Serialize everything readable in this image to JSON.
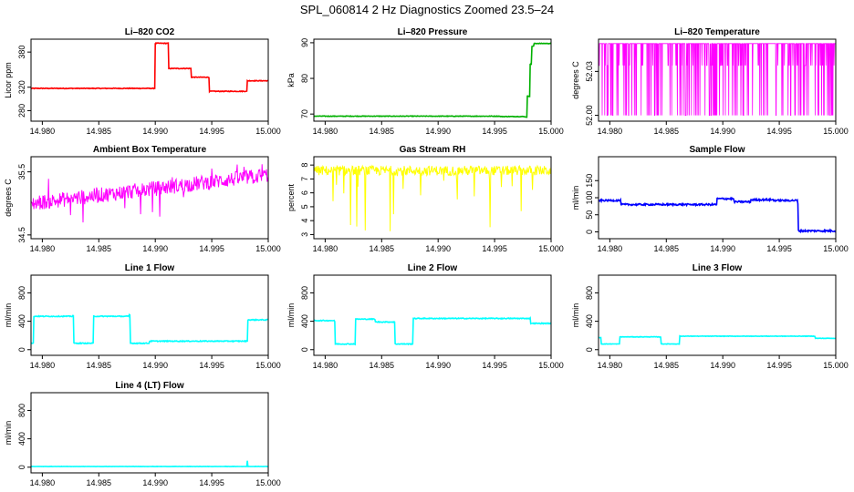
{
  "figure_title": "SPL_060814  2 Hz Diagnostics Zoomed 23.5–24",
  "x_ticks": [
    "14.980",
    "14.985",
    "14.990",
    "14.995",
    "15.000"
  ],
  "chart_data": [
    {
      "type": "line",
      "title": "Li–820 CO2",
      "ylabel": "Licor ppm",
      "xlim": [
        14.979,
        15.0
      ],
      "ylim": [
        262,
        402
      ],
      "yticks": [
        280,
        320,
        380
      ],
      "color": "#ff0000",
      "noise": 0.6,
      "series": [
        {
          "name": "CO2",
          "steps": [
            [
              14.979,
              318
            ],
            [
              14.99,
              395
            ],
            [
              14.9912,
              352
            ],
            [
              14.9932,
              337
            ],
            [
              14.9948,
              313
            ],
            [
              14.9981,
              331
            ],
            [
              15.0,
              331
            ]
          ]
        }
      ]
    },
    {
      "type": "line",
      "title": "Li–820 Pressure",
      "ylabel": "kPa",
      "xlim": [
        14.979,
        15.0
      ],
      "ylim": [
        68,
        91
      ],
      "yticks": [
        70,
        80,
        90
      ],
      "color": "#00b000",
      "noise": 0.08,
      "series": [
        {
          "name": "Pressure",
          "steps": [
            [
              14.979,
              69.4
            ],
            [
              14.9955,
              69.3
            ],
            [
              14.9977,
              69.2
            ],
            [
              14.9979,
              75
            ],
            [
              14.9981,
              84
            ],
            [
              14.9983,
              89
            ],
            [
              14.9985,
              89.8
            ],
            [
              15.0,
              89.8
            ]
          ]
        }
      ]
    },
    {
      "type": "line",
      "title": "Li–820 Temperature",
      "ylabel": "degrees C",
      "xlim": [
        14.979,
        15.0
      ],
      "ylim": [
        51.996,
        52.052
      ],
      "yticks": [
        52.0,
        52.03
      ],
      "color": "#ff00ff",
      "style": "binary",
      "series": [
        {
          "name": "Temperature",
          "levels": [
            52.0,
            52.034,
            52.049
          ]
        }
      ]
    },
    {
      "type": "line",
      "title": "Ambient Box Temperature",
      "ylabel": "degrees C",
      "xlim": [
        14.979,
        15.0
      ],
      "ylim": [
        34.44,
        35.74
      ],
      "yticks": [
        34.5,
        35.5
      ],
      "color": "#ff00ff",
      "style": "noisy",
      "series": [
        {
          "name": "Ambient",
          "start": 35.0,
          "end": 35.45,
          "amp": 0.12,
          "spike": 0.35
        }
      ]
    },
    {
      "type": "line",
      "title": "Gas Stream RH",
      "ylabel": "percent",
      "xlim": [
        14.979,
        15.0
      ],
      "ylim": [
        2.7,
        8.6
      ],
      "yticks": [
        3,
        4,
        5,
        6,
        7,
        8
      ],
      "color": "#ffff00",
      "style": "rh",
      "series": [
        {
          "name": "RH",
          "level": 7.6,
          "amp": 0.35
        }
      ]
    },
    {
      "type": "line",
      "title": "Sample Flow",
      "ylabel": "ml/min",
      "xlim": [
        14.979,
        15.0
      ],
      "ylim": [
        -20,
        220
      ],
      "yticks": [
        0,
        50,
        100,
        150
      ],
      "color": "#0000ff",
      "noise": 2.5,
      "series": [
        {
          "name": "Sample",
          "steps": [
            [
              14.979,
              92
            ],
            [
              14.981,
              80
            ],
            [
              14.9935,
              92
            ],
            [
              14.9953,
              82
            ],
            [
              14.9895,
              97
            ],
            [
              14.991,
              88
            ],
            [
              14.9925,
              94
            ],
            [
              14.9945,
              92
            ],
            [
              14.9966,
              81
            ],
            [
              14.9967,
              3
            ],
            [
              15.0,
              3
            ]
          ]
        }
      ]
    },
    {
      "type": "line",
      "title": "Line 1 Flow",
      "ylabel": "ml/min",
      "xlim": [
        14.979,
        15.0
      ],
      "ylim": [
        -80,
        1050
      ],
      "yticks": [
        0,
        400,
        800
      ],
      "color": "#00ffff",
      "noise": 6,
      "series": [
        {
          "name": "Line 1",
          "steps": [
            [
              14.979,
              90
            ],
            [
              14.9792,
              470
            ],
            [
              14.9827,
              480
            ],
            [
              14.9828,
              90
            ],
            [
              14.9844,
              90
            ],
            [
              14.9845,
              470
            ],
            [
              14.9877,
              490
            ],
            [
              14.9878,
              90
            ],
            [
              14.9895,
              120
            ],
            [
              14.9981,
              120
            ],
            [
              14.9982,
              420
            ],
            [
              15.0,
              430
            ]
          ]
        }
      ]
    },
    {
      "type": "line",
      "title": "Line 2 Flow",
      "ylabel": "ml/min",
      "xlim": [
        14.979,
        15.0
      ],
      "ylim": [
        -80,
        1050
      ],
      "yticks": [
        0,
        400,
        800
      ],
      "color": "#00ffff",
      "noise": 6,
      "series": [
        {
          "name": "Line 2",
          "steps": [
            [
              14.979,
              410
            ],
            [
              14.9808,
              390
            ],
            [
              14.9809,
              80
            ],
            [
              14.9826,
              80
            ],
            [
              14.9827,
              430
            ],
            [
              14.9843,
              430
            ],
            [
              14.9844,
              390
            ],
            [
              14.9861,
              390
            ],
            [
              14.9862,
              80
            ],
            [
              14.9877,
              80
            ],
            [
              14.9878,
              440
            ],
            [
              14.9981,
              440
            ],
            [
              14.9982,
              370
            ],
            [
              15.0,
              370
            ]
          ]
        }
      ]
    },
    {
      "type": "line",
      "title": "Line 3 Flow",
      "ylabel": "ml/min",
      "xlim": [
        14.979,
        15.0
      ],
      "ylim": [
        -80,
        1050
      ],
      "yticks": [
        0,
        400,
        800
      ],
      "color": "#00ffff",
      "noise": 3,
      "series": [
        {
          "name": "Line 3",
          "steps": [
            [
              14.979,
              170
            ],
            [
              14.9792,
              80
            ],
            [
              14.9808,
              80
            ],
            [
              14.9809,
              180
            ],
            [
              14.9844,
              180
            ],
            [
              14.9845,
              80
            ],
            [
              14.9861,
              80
            ],
            [
              14.9862,
              190
            ],
            [
              14.9981,
              190
            ],
            [
              14.9982,
              160
            ],
            [
              15.0,
              160
            ]
          ]
        }
      ]
    },
    {
      "type": "line",
      "title": "Line 4 (LT) Flow",
      "ylabel": "ml/min",
      "xlim": [
        14.979,
        15.0
      ],
      "ylim": [
        -80,
        1050
      ],
      "yticks": [
        0,
        400,
        800
      ],
      "color": "#00ffff",
      "noise": 2,
      "series": [
        {
          "name": "Line 4",
          "steps": [
            [
              14.979,
              10
            ],
            [
              14.9981,
              10
            ],
            [
              14.99812,
              90
            ],
            [
              14.99818,
              10
            ],
            [
              15.0,
              10
            ]
          ]
        }
      ]
    }
  ]
}
